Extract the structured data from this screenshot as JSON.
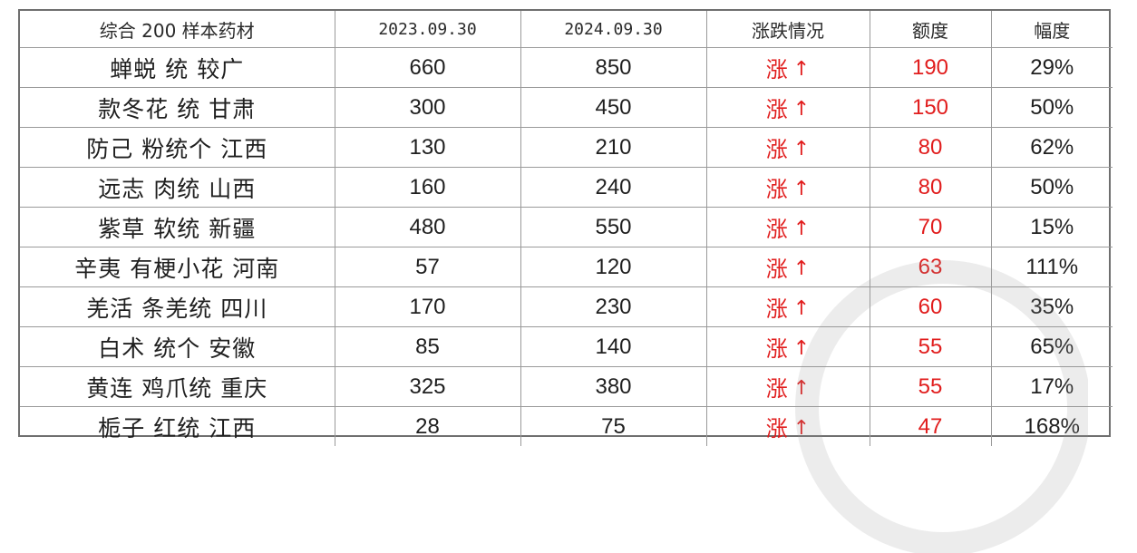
{
  "table": {
    "headers": [
      "综合 200 样本药材",
      "2023.09.30",
      "2024.09.30",
      "涨跌情况",
      "额度",
      "幅度"
    ],
    "rows": [
      {
        "name": "蝉蜕 统 较广",
        "v2023": "660",
        "v2024": "850",
        "trend": "涨",
        "arrow": "↑",
        "amount": "190",
        "pct": "29%"
      },
      {
        "name": "款冬花 统 甘肃",
        "v2023": "300",
        "v2024": "450",
        "trend": "涨",
        "arrow": "↑",
        "amount": "150",
        "pct": "50%"
      },
      {
        "name": "防己 粉统个 江西",
        "v2023": "130",
        "v2024": "210",
        "trend": "涨",
        "arrow": "↑",
        "amount": "80",
        "pct": "62%"
      },
      {
        "name": "远志 肉统 山西",
        "v2023": "160",
        "v2024": "240",
        "trend": "涨",
        "arrow": "↑",
        "amount": "80",
        "pct": "50%"
      },
      {
        "name": "紫草 软统 新疆",
        "v2023": "480",
        "v2024": "550",
        "trend": "涨",
        "arrow": "↑",
        "amount": "70",
        "pct": "15%"
      },
      {
        "name": "辛夷 有梗小花 河南",
        "v2023": "57",
        "v2024": "120",
        "trend": "涨",
        "arrow": "↑",
        "amount": "63",
        "pct": "111%"
      },
      {
        "name": "羌活 条羌统 四川",
        "v2023": "170",
        "v2024": "230",
        "trend": "涨",
        "arrow": "↑",
        "amount": "60",
        "pct": "35%"
      },
      {
        "name": "白术 统个 安徽",
        "v2023": "85",
        "v2024": "140",
        "trend": "涨",
        "arrow": "↑",
        "amount": "55",
        "pct": "65%"
      },
      {
        "name": "黄连 鸡爪统 重庆",
        "v2023": "325",
        "v2024": "380",
        "trend": "涨",
        "arrow": "↑",
        "amount": "55",
        "pct": "17%"
      },
      {
        "name": "栀子 红统 江西",
        "v2023": "28",
        "v2024": "75",
        "trend": "涨",
        "arrow": "↑",
        "amount": "47",
        "pct": "168%"
      }
    ]
  },
  "colors": {
    "rise": "#e11d1d",
    "border": "#9a9a9a",
    "frame": "#6f6f6f",
    "text": "#1f1f1f"
  }
}
